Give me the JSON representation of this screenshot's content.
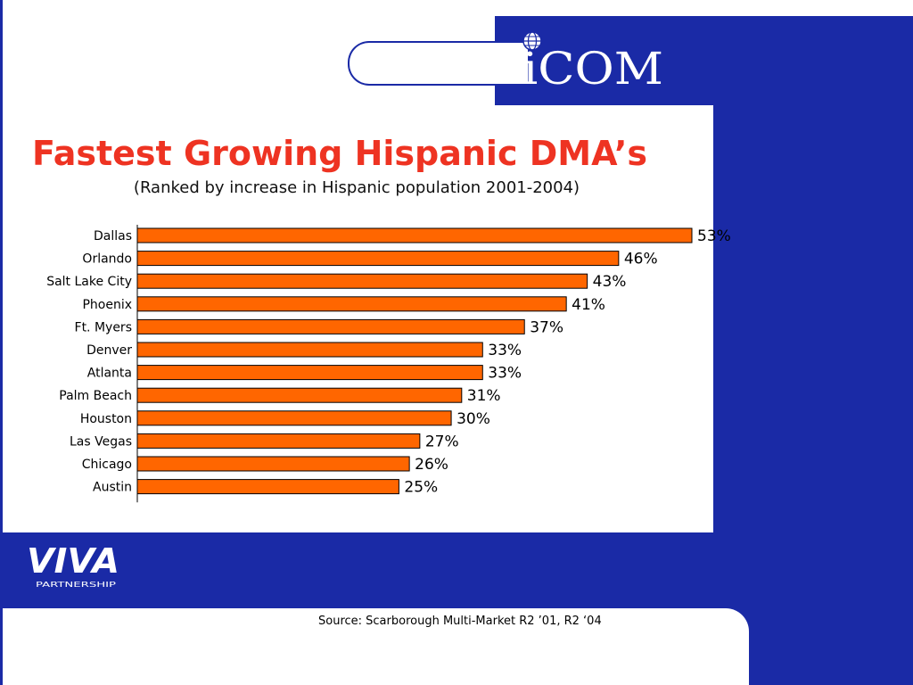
{
  "logos": {
    "top_brand": "iCOM",
    "bottom_brand": "VIVA",
    "bottom_brand_sub": "PARTNERSHIP"
  },
  "colors": {
    "accent_blue": "#1a2aa6",
    "bar_fill": "#ff6600",
    "title_red": "#ee3322"
  },
  "chart_data": {
    "type": "bar",
    "orientation": "horizontal",
    "title": "Fastest Growing Hispanic DMA’s",
    "subtitle": "(Ranked by increase in Hispanic population 2001-2004)",
    "categories": [
      "Dallas",
      "Orlando",
      "Salt Lake City",
      "Phoenix",
      "Ft. Myers",
      "Denver",
      "Atlanta",
      "Palm Beach",
      "Houston",
      "Las Vegas",
      "Chicago",
      "Austin"
    ],
    "values": [
      53,
      46,
      43,
      41,
      37,
      33,
      33,
      31,
      30,
      27,
      26,
      25
    ],
    "labels": [
      "53%",
      "46%",
      "43%",
      "41%",
      "37%",
      "33%",
      "33%",
      "31%",
      "30%",
      "27%",
      "26%",
      "25%"
    ],
    "value_unit": "%",
    "xlim": [
      0,
      53
    ],
    "grid": false,
    "legend": "none"
  },
  "source": "Source:  Scarborough Multi-Market R2 ’01, R2 ‘04"
}
